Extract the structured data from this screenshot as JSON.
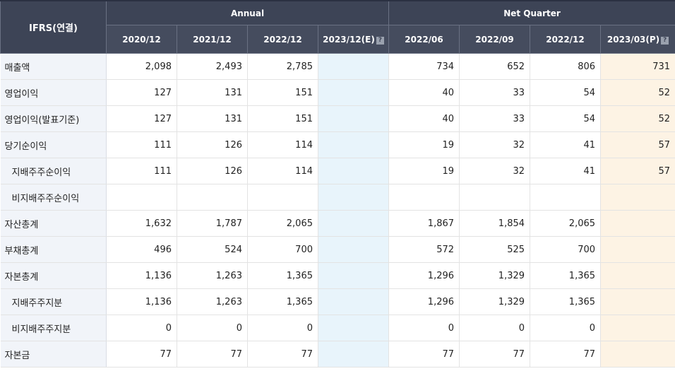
{
  "header": {
    "ifrs_label": "IFRS(연결)",
    "annual_label": "Annual",
    "quarter_label": "Net Quarter",
    "periods": [
      "2020/12",
      "2021/12",
      "2022/12",
      "2023/12(E)",
      "2022/06",
      "2022/09",
      "2022/12",
      "2023/03(P)"
    ],
    "help_glyph": "?"
  },
  "rows": [
    {
      "label": "매출액",
      "v": [
        "2,098",
        "2,493",
        "2,785",
        "",
        "734",
        "652",
        "806",
        "731"
      ]
    },
    {
      "label": "영업이익",
      "v": [
        "127",
        "131",
        "151",
        "",
        "40",
        "33",
        "54",
        "52"
      ]
    },
    {
      "label": "영업이익(발표기준)",
      "v": [
        "127",
        "131",
        "151",
        "",
        "40",
        "33",
        "54",
        "52"
      ]
    },
    {
      "label": "당기순이익",
      "v": [
        "111",
        "126",
        "114",
        "",
        "19",
        "32",
        "41",
        "57"
      ]
    },
    {
      "label": "지배주주순이익",
      "v": [
        "111",
        "126",
        "114",
        "",
        "19",
        "32",
        "41",
        "57"
      ]
    },
    {
      "label": "비지배주주순이익",
      "v": [
        "",
        "",
        "",
        "",
        "",
        "",
        "",
        ""
      ]
    },
    {
      "label": "자산총계",
      "v": [
        "1,632",
        "1,787",
        "2,065",
        "",
        "1,867",
        "1,854",
        "2,065",
        ""
      ]
    },
    {
      "label": "부채총계",
      "v": [
        "496",
        "524",
        "700",
        "",
        "572",
        "525",
        "700",
        ""
      ]
    },
    {
      "label": "자본총계",
      "v": [
        "1,136",
        "1,263",
        "1,365",
        "",
        "1,296",
        "1,329",
        "1,365",
        ""
      ]
    },
    {
      "label": "지배주주지분",
      "v": [
        "1,136",
        "1,263",
        "1,365",
        "",
        "1,296",
        "1,329",
        "1,365",
        ""
      ]
    },
    {
      "label": "비지배주주지분",
      "v": [
        "0",
        "0",
        "0",
        "",
        "0",
        "0",
        "0",
        ""
      ]
    },
    {
      "label": "자본금",
      "v": [
        "77",
        "77",
        "77",
        "",
        "77",
        "77",
        "77",
        ""
      ]
    }
  ],
  "colors": {
    "header_bg": "#3d4456",
    "label_bg": "#f1f4f9",
    "estimate_bg": "#e8f4fb",
    "preliminary_bg": "#fdf3e4"
  }
}
